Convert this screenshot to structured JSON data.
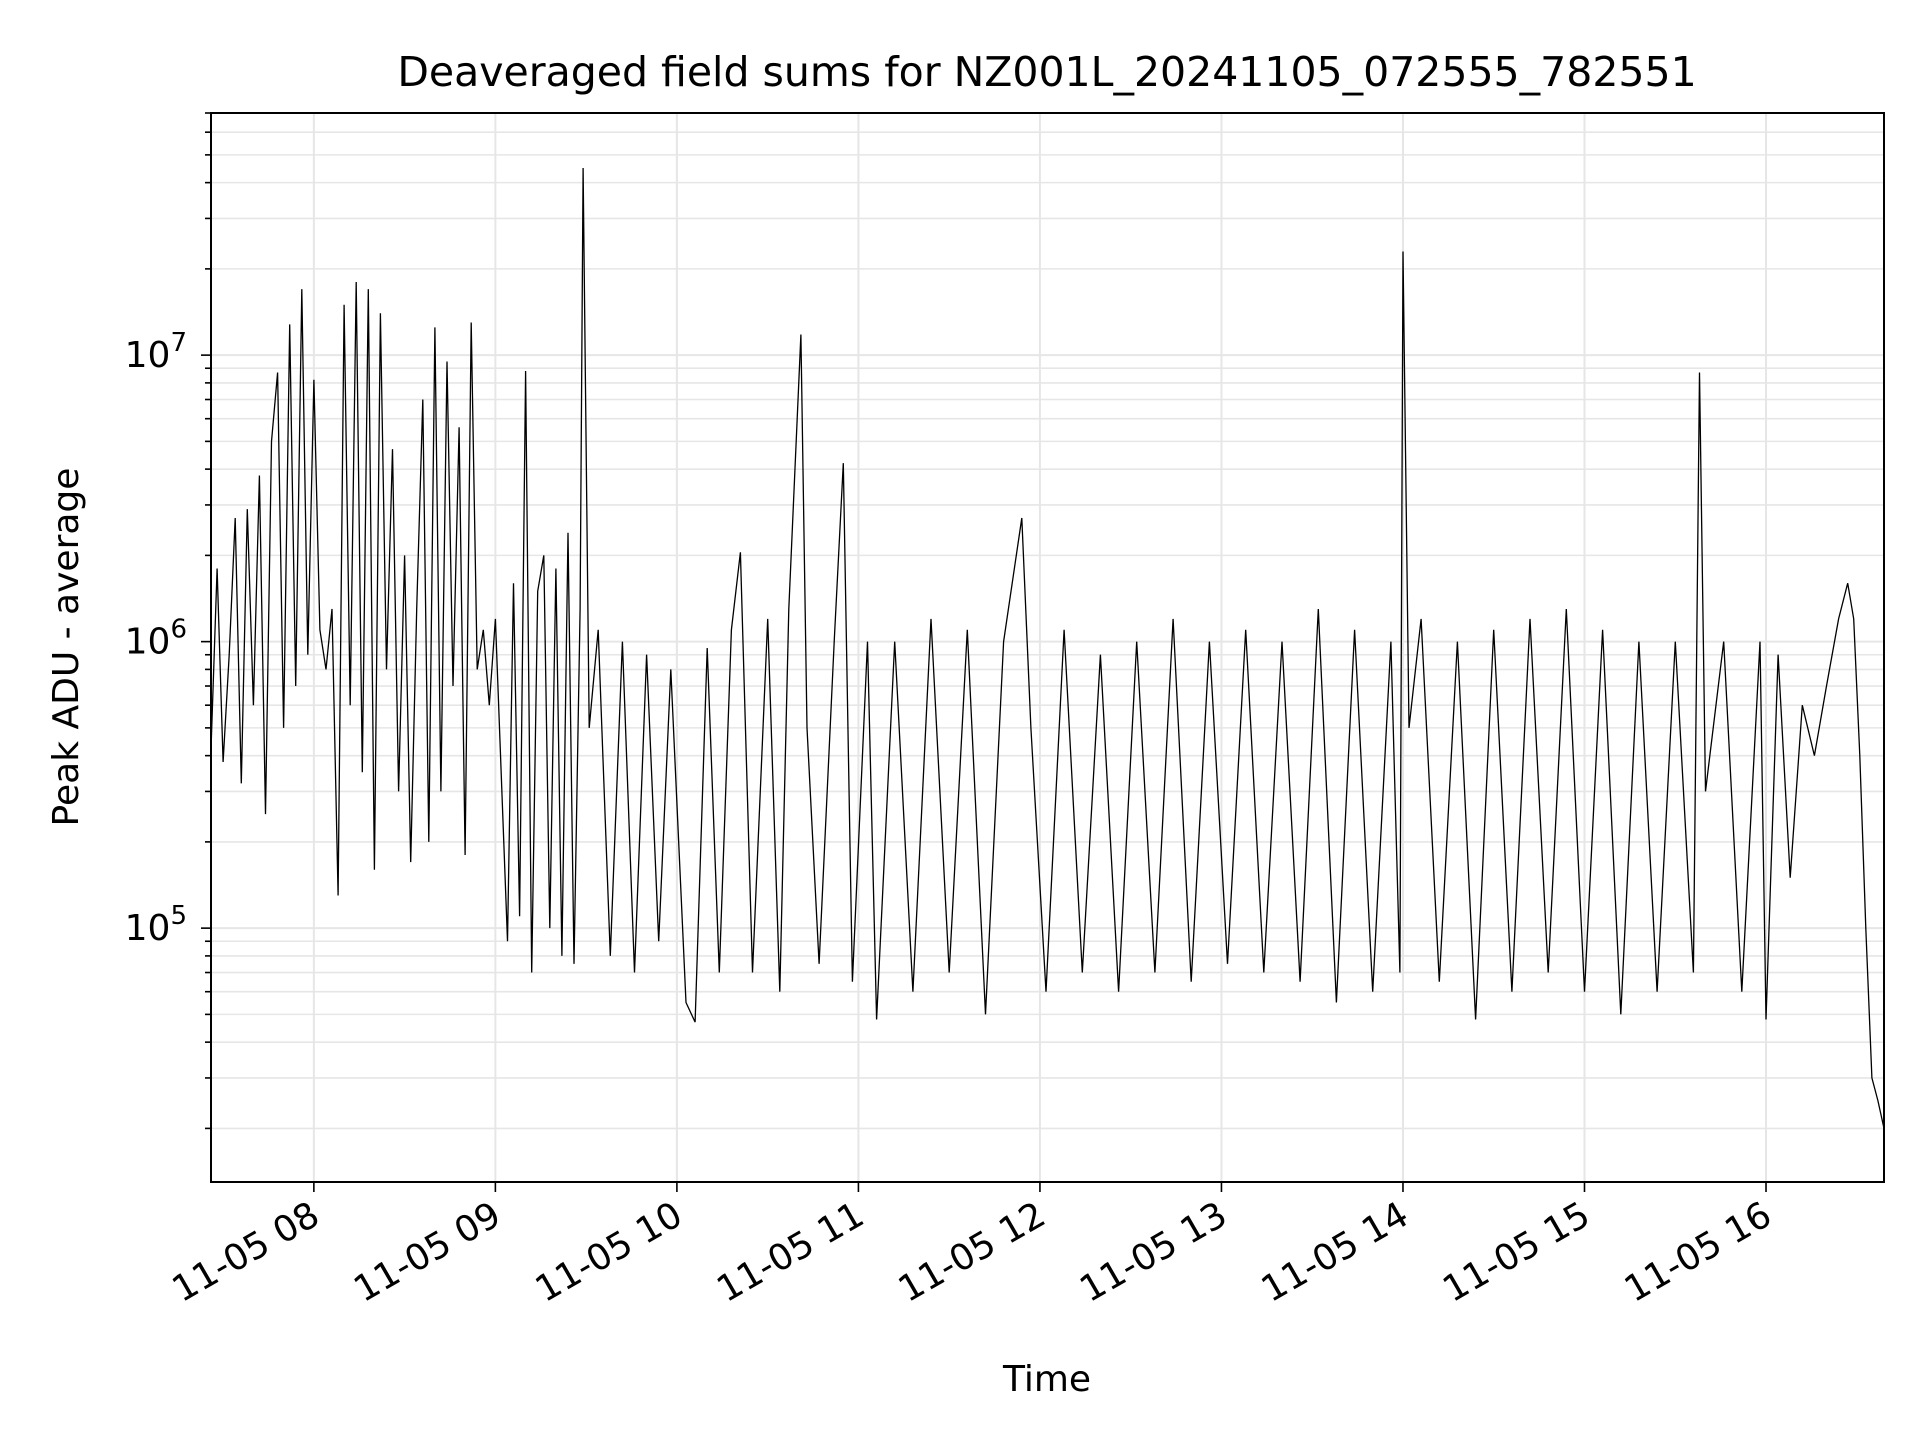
{
  "chart_data": {
    "type": "line",
    "title": "Deaveraged field sums for NZ001L_20241105_072555_782551",
    "xlabel": "Time",
    "ylabel": "Peak ADU - average",
    "xscale": "time",
    "yscale": "log",
    "xlim": [
      "2024-11-05 07:26",
      "2024-11-05 16:39"
    ],
    "ylim": [
      13000,
      70000000
    ],
    "grid": true,
    "x_tick_labels": [
      "11-05 08",
      "11-05 09",
      "11-05 10",
      "11-05 11",
      "11-05 12",
      "11-05 13",
      "11-05 14",
      "11-05 15",
      "11-05 16"
    ],
    "y_tick_labels": [
      {
        "base": "10",
        "exp": "5",
        "value": 100000
      },
      {
        "base": "10",
        "exp": "6",
        "value": 1000000
      },
      {
        "base": "10",
        "exp": "7",
        "value": 10000000
      }
    ],
    "series": [
      {
        "color": "#000000",
        "note_points": "approximate envelope of a dense noisy trace; time as 'YYYY-MM-DD HH:MM', value in ADU",
        "points": [
          [
            "2024-11-05 07:26",
            420000
          ],
          [
            "2024-11-05 07:28",
            1800000
          ],
          [
            "2024-11-05 07:30",
            380000
          ],
          [
            "2024-11-05 07:32",
            900000
          ],
          [
            "2024-11-05 07:34",
            2700000
          ],
          [
            "2024-11-05 07:36",
            320000
          ],
          [
            "2024-11-05 07:38",
            2900000
          ],
          [
            "2024-11-05 07:40",
            600000
          ],
          [
            "2024-11-05 07:42",
            3800000
          ],
          [
            "2024-11-05 07:44",
            250000
          ],
          [
            "2024-11-05 07:46",
            5000000
          ],
          [
            "2024-11-05 07:48",
            8700000
          ],
          [
            "2024-11-05 07:50",
            500000
          ],
          [
            "2024-11-05 07:52",
            12800000
          ],
          [
            "2024-11-05 07:54",
            700000
          ],
          [
            "2024-11-05 07:56",
            17000000
          ],
          [
            "2024-11-05 07:58",
            900000
          ],
          [
            "2024-11-05 08:00",
            8200000
          ],
          [
            "2024-11-05 08:02",
            1100000
          ],
          [
            "2024-11-05 08:04",
            800000
          ],
          [
            "2024-11-05 08:06",
            1300000
          ],
          [
            "2024-11-05 08:08",
            130000
          ],
          [
            "2024-11-05 08:10",
            15000000
          ],
          [
            "2024-11-05 08:12",
            600000
          ],
          [
            "2024-11-05 08:14",
            18000000
          ],
          [
            "2024-11-05 08:16",
            350000
          ],
          [
            "2024-11-05 08:18",
            17000000
          ],
          [
            "2024-11-05 08:20",
            160000
          ],
          [
            "2024-11-05 08:22",
            14000000
          ],
          [
            "2024-11-05 08:24",
            800000
          ],
          [
            "2024-11-05 08:26",
            4700000
          ],
          [
            "2024-11-05 08:28",
            300000
          ],
          [
            "2024-11-05 08:30",
            2000000
          ],
          [
            "2024-11-05 08:32",
            170000
          ],
          [
            "2024-11-05 08:34",
            1300000
          ],
          [
            "2024-11-05 08:36",
            7000000
          ],
          [
            "2024-11-05 08:38",
            200000
          ],
          [
            "2024-11-05 08:40",
            12500000
          ],
          [
            "2024-11-05 08:42",
            300000
          ],
          [
            "2024-11-05 08:44",
            9500000
          ],
          [
            "2024-11-05 08:46",
            700000
          ],
          [
            "2024-11-05 08:48",
            5600000
          ],
          [
            "2024-11-05 08:50",
            180000
          ],
          [
            "2024-11-05 08:52",
            13000000
          ],
          [
            "2024-11-05 08:54",
            800000
          ],
          [
            "2024-11-05 08:56",
            1100000
          ],
          [
            "2024-11-05 08:58",
            600000
          ],
          [
            "2024-11-05 09:00",
            1200000
          ],
          [
            "2024-11-05 09:04",
            90000
          ],
          [
            "2024-11-05 09:06",
            1600000
          ],
          [
            "2024-11-05 09:08",
            110000
          ],
          [
            "2024-11-05 09:10",
            8800000
          ],
          [
            "2024-11-05 09:12",
            70000
          ],
          [
            "2024-11-05 09:14",
            1500000
          ],
          [
            "2024-11-05 09:16",
            2000000
          ],
          [
            "2024-11-05 09:18",
            100000
          ],
          [
            "2024-11-05 09:20",
            1800000
          ],
          [
            "2024-11-05 09:22",
            80000
          ],
          [
            "2024-11-05 09:24",
            2400000
          ],
          [
            "2024-11-05 09:26",
            75000
          ],
          [
            "2024-11-05 09:28",
            1300000
          ],
          [
            "2024-11-05 09:29",
            45000000
          ],
          [
            "2024-11-05 09:31",
            500000
          ],
          [
            "2024-11-05 09:34",
            1100000
          ],
          [
            "2024-11-05 09:38",
            80000
          ],
          [
            "2024-11-05 09:42",
            1000000
          ],
          [
            "2024-11-05 09:46",
            70000
          ],
          [
            "2024-11-05 09:50",
            900000
          ],
          [
            "2024-11-05 09:54",
            90000
          ],
          [
            "2024-11-05 09:58",
            800000
          ],
          [
            "2024-11-05 10:03",
            55000
          ],
          [
            "2024-11-05 10:06",
            47000
          ],
          [
            "2024-11-05 10:10",
            950000
          ],
          [
            "2024-11-05 10:14",
            70000
          ],
          [
            "2024-11-05 10:18",
            1100000
          ],
          [
            "2024-11-05 10:21",
            2050000
          ],
          [
            "2024-11-05 10:25",
            70000
          ],
          [
            "2024-11-05 10:30",
            1200000
          ],
          [
            "2024-11-05 10:34",
            60000
          ],
          [
            "2024-11-05 10:37",
            1300000
          ],
          [
            "2024-11-05 10:41",
            11800000
          ],
          [
            "2024-11-05 10:43",
            500000
          ],
          [
            "2024-11-05 10:47",
            75000
          ],
          [
            "2024-11-05 10:52",
            1000000
          ],
          [
            "2024-11-05 10:55",
            4200000
          ],
          [
            "2024-11-05 10:58",
            65000
          ],
          [
            "2024-11-05 11:03",
            1000000
          ],
          [
            "2024-11-05 11:06",
            48000
          ],
          [
            "2024-11-05 11:12",
            1000000
          ],
          [
            "2024-11-05 11:18",
            60000
          ],
          [
            "2024-11-05 11:24",
            1200000
          ],
          [
            "2024-11-05 11:30",
            70000
          ],
          [
            "2024-11-05 11:36",
            1100000
          ],
          [
            "2024-11-05 11:42",
            50000
          ],
          [
            "2024-11-05 11:48",
            1000000
          ],
          [
            "2024-11-05 11:54",
            2700000
          ],
          [
            "2024-11-05 11:57",
            500000
          ],
          [
            "2024-11-05 12:02",
            60000
          ],
          [
            "2024-11-05 12:08",
            1100000
          ],
          [
            "2024-11-05 12:14",
            70000
          ],
          [
            "2024-11-05 12:20",
            900000
          ],
          [
            "2024-11-05 12:26",
            60000
          ],
          [
            "2024-11-05 12:32",
            1000000
          ],
          [
            "2024-11-05 12:38",
            70000
          ],
          [
            "2024-11-05 12:44",
            1200000
          ],
          [
            "2024-11-05 12:50",
            65000
          ],
          [
            "2024-11-05 12:56",
            1000000
          ],
          [
            "2024-11-05 13:02",
            75000
          ],
          [
            "2024-11-05 13:08",
            1100000
          ],
          [
            "2024-11-05 13:14",
            70000
          ],
          [
            "2024-11-05 13:20",
            1000000
          ],
          [
            "2024-11-05 13:26",
            65000
          ],
          [
            "2024-11-05 13:32",
            1300000
          ],
          [
            "2024-11-05 13:38",
            55000
          ],
          [
            "2024-11-05 13:44",
            1100000
          ],
          [
            "2024-11-05 13:50",
            60000
          ],
          [
            "2024-11-05 13:56",
            1000000
          ],
          [
            "2024-11-05 13:59",
            70000
          ],
          [
            "2024-11-05 14:00",
            23000000
          ],
          [
            "2024-11-05 14:02",
            500000
          ],
          [
            "2024-11-05 14:06",
            1200000
          ],
          [
            "2024-11-05 14:12",
            65000
          ],
          [
            "2024-11-05 14:18",
            1000000
          ],
          [
            "2024-11-05 14:24",
            48000
          ],
          [
            "2024-11-05 14:30",
            1100000
          ],
          [
            "2024-11-05 14:36",
            60000
          ],
          [
            "2024-11-05 14:42",
            1200000
          ],
          [
            "2024-11-05 14:48",
            70000
          ],
          [
            "2024-11-05 14:54",
            1300000
          ],
          [
            "2024-11-05 15:00",
            60000
          ],
          [
            "2024-11-05 15:06",
            1100000
          ],
          [
            "2024-11-05 15:12",
            50000
          ],
          [
            "2024-11-05 15:18",
            1000000
          ],
          [
            "2024-11-05 15:24",
            60000
          ],
          [
            "2024-11-05 15:30",
            1000000
          ],
          [
            "2024-11-05 15:36",
            70000
          ],
          [
            "2024-11-05 15:38",
            8700000
          ],
          [
            "2024-11-05 15:40",
            300000
          ],
          [
            "2024-11-05 15:46",
            1000000
          ],
          [
            "2024-11-05 15:52",
            60000
          ],
          [
            "2024-11-05 15:58",
            1000000
          ],
          [
            "2024-11-05 16:00",
            48000
          ],
          [
            "2024-11-05 16:04",
            900000
          ],
          [
            "2024-11-05 16:08",
            150000
          ],
          [
            "2024-11-05 16:12",
            600000
          ],
          [
            "2024-11-05 16:16",
            400000
          ],
          [
            "2024-11-05 16:20",
            700000
          ],
          [
            "2024-11-05 16:24",
            1200000
          ],
          [
            "2024-11-05 16:27",
            1600000
          ],
          [
            "2024-11-05 16:29",
            1200000
          ],
          [
            "2024-11-05 16:31",
            400000
          ],
          [
            "2024-11-05 16:33",
            100000
          ],
          [
            "2024-11-05 16:35",
            30000
          ],
          [
            "2024-11-05 16:37",
            25000
          ],
          [
            "2024-11-05 16:39",
            20000
          ]
        ]
      }
    ]
  }
}
